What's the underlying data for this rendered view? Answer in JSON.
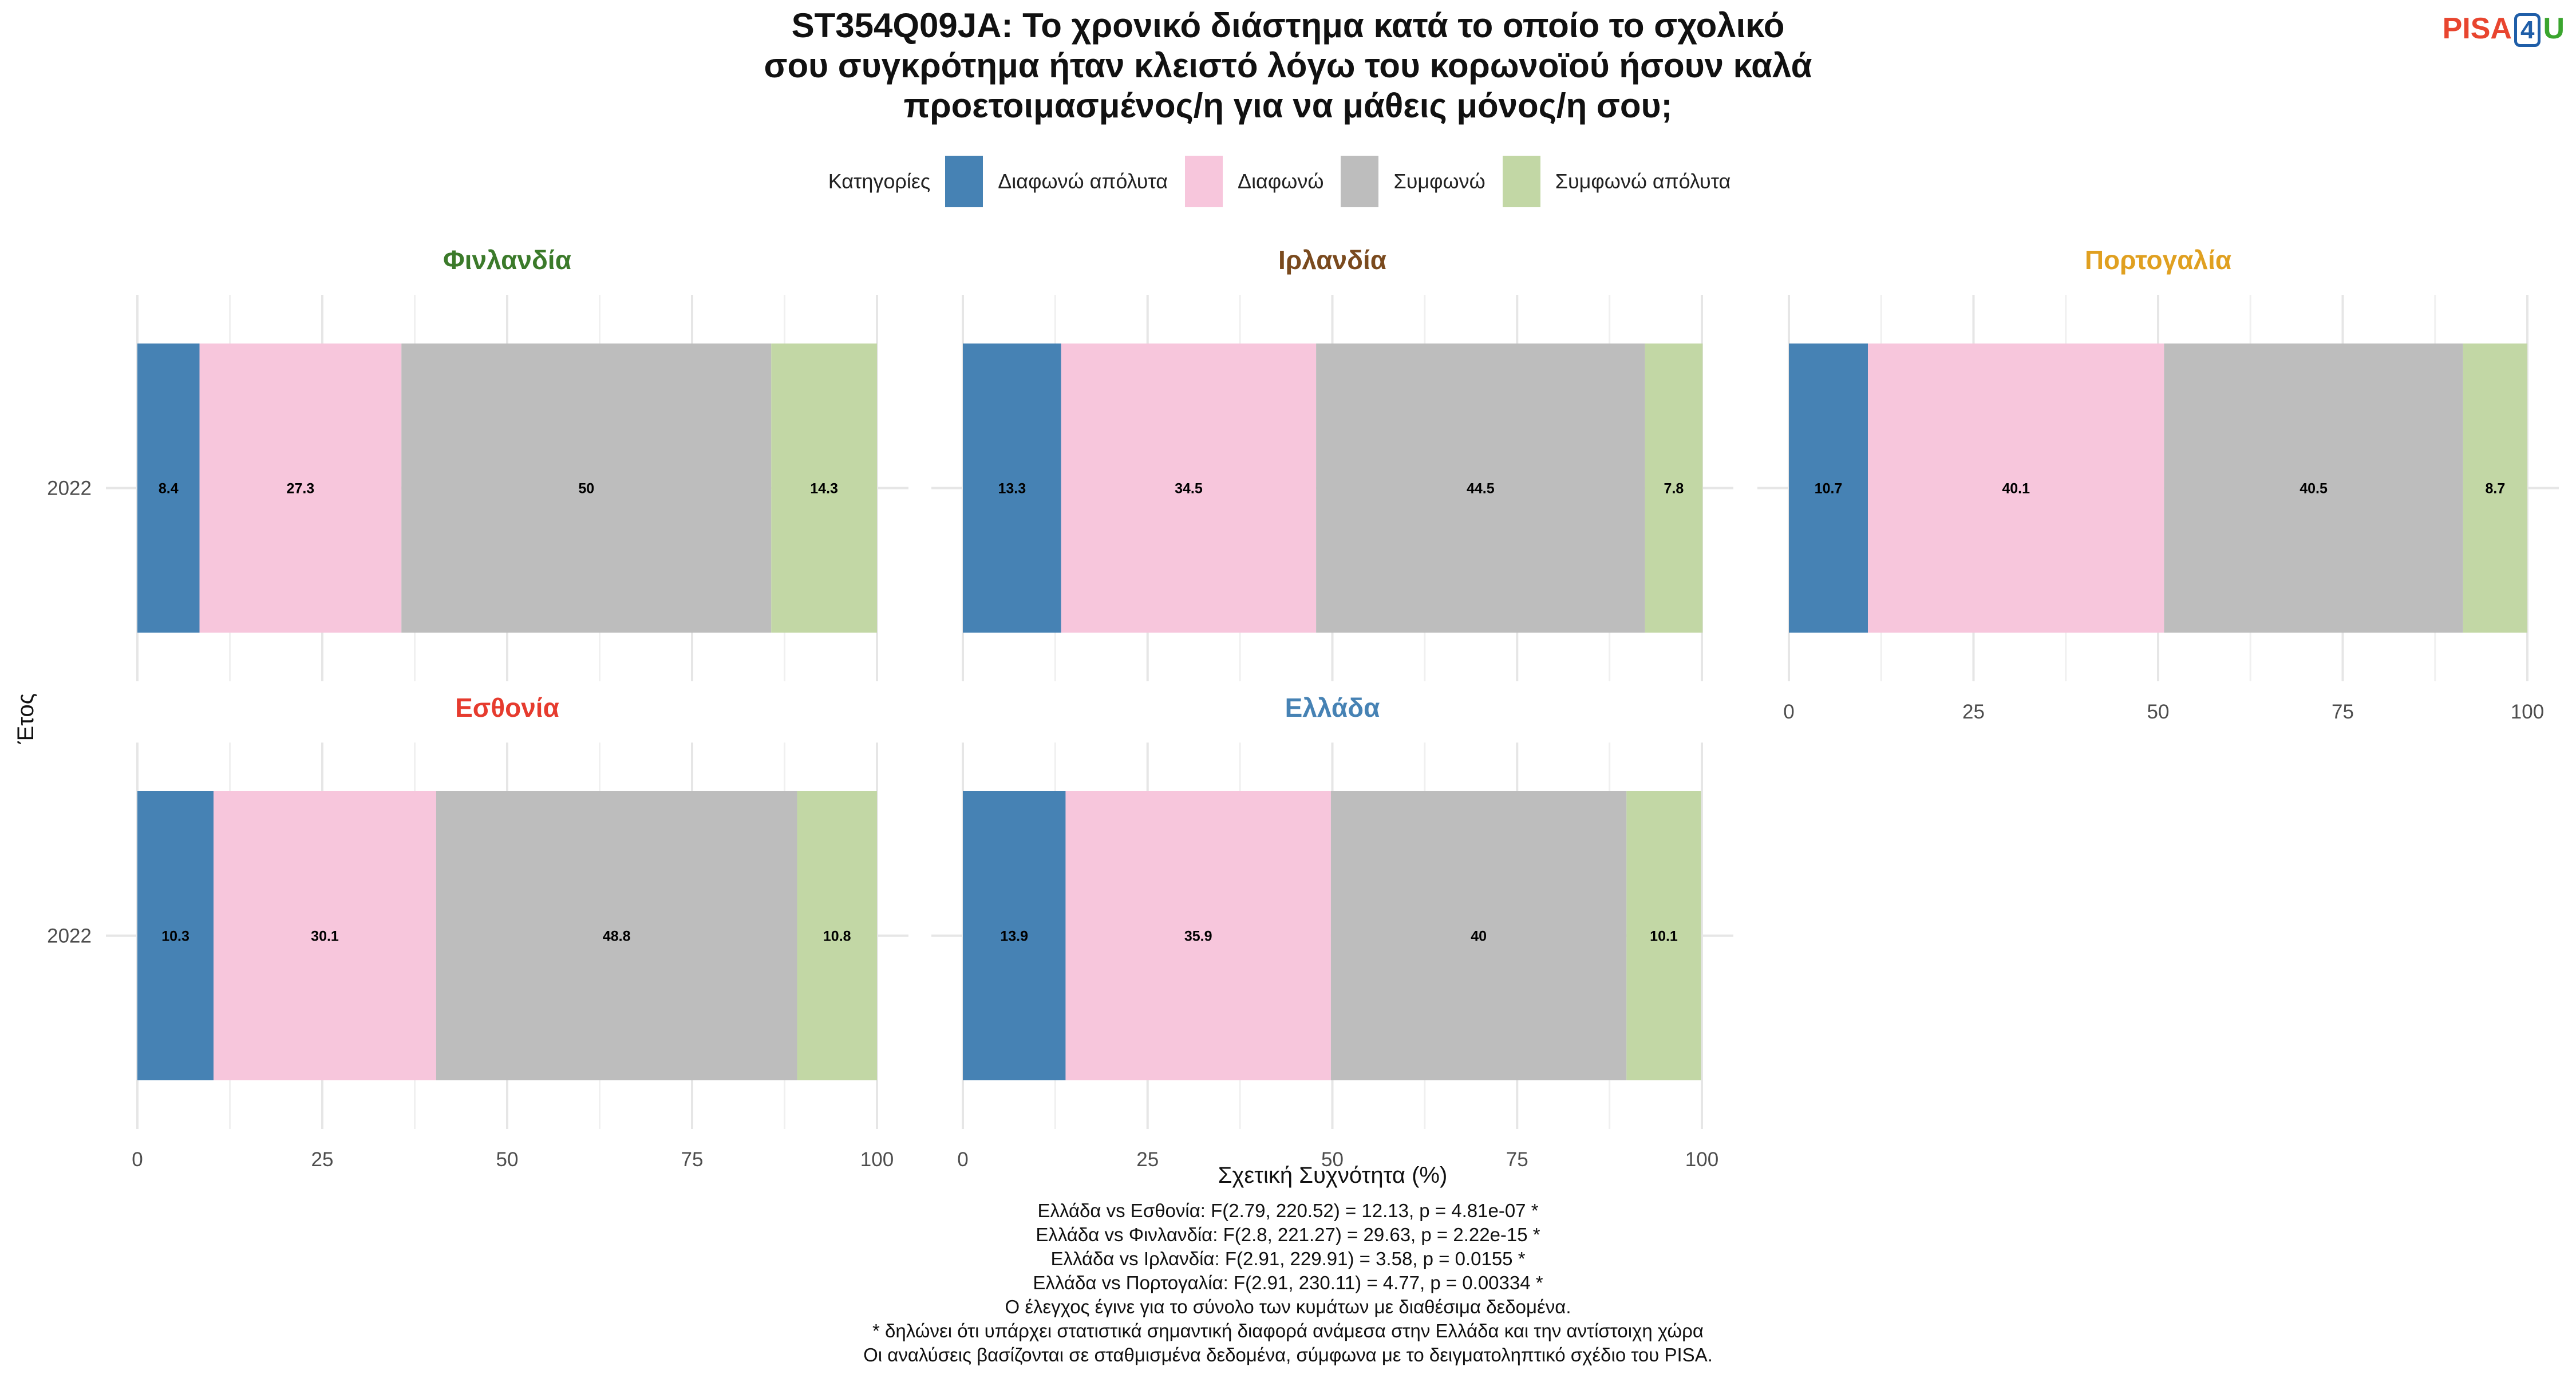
{
  "title_lines": [
    "ST354Q09JA: Το χρονικό διάστημα κατά το οποίο το σχολικό",
    "σου συγκρότημα ήταν κλειστό λόγω του κορωνοϊού ήσουν καλά",
    "προετοιμασμένος/η για να μάθεις μόνος/η σου;"
  ],
  "logo": {
    "pisa": "PISA",
    "four": "4",
    "u": "U"
  },
  "legend": {
    "title": "Κατηγορίες",
    "items": [
      {
        "label": "Διαφωνώ απόλυτα",
        "color": "#4682b4"
      },
      {
        "label": "Διαφωνώ",
        "color": "#f7c6dc"
      },
      {
        "label": "Συμφωνώ",
        "color": "#bdbdbd"
      },
      {
        "label": "Συμφωνώ απόλυτα",
        "color": "#c2d7a5"
      }
    ]
  },
  "notes": [
    "Ελλάδα vs Εσθονία: F(2.79, 220.52) = 12.13, p = 4.81e-07 *",
    "Ελλάδα vs Φινλανδία: F(2.8, 221.27) = 29.63, p = 2.22e-15 *",
    "Ελλάδα vs Ιρλανδία: F(2.91, 229.91) = 3.58, p = 0.0155 *",
    "Ελλάδα vs Πορτογαλία: F(2.91, 230.11) = 4.77, p = 0.00334 *",
    "Ο έλεγχος έγινε για το σύνολο των κυμάτων με διαθέσιμα δεδομένα.",
    "* δηλώνει ότι υπάρχει στατιστικά σημαντική διαφορά ανάμεσα στην Ελλάδα και την αντίστοιχη χώρα",
    "Οι αναλύσεις βασίζονται σε σταθμισμένα δεδομένα, σύμφωνα με το δειγματοληπτικό σχέδιο του PISA."
  ],
  "chart_data": {
    "type": "bar",
    "orientation": "horizontal-stacked",
    "xlabel": "Σχετική Συχνότητα (%)",
    "ylabel": "Έτος",
    "xlim": [
      0,
      100
    ],
    "xticks": [
      0,
      25,
      50,
      75,
      100
    ],
    "categories": [
      "Διαφωνώ απόλυτα",
      "Διαφωνώ",
      "Συμφωνώ",
      "Συμφωνώ απόλυτα"
    ],
    "panels": [
      {
        "name": "Φινλανδία",
        "color": "#3b7a2a",
        "year": "2022",
        "values": [
          8.4,
          27.3,
          50,
          14.3
        ]
      },
      {
        "name": "Ιρλανδία",
        "color": "#7a4a1e",
        "year": "2022",
        "values": [
          13.3,
          34.5,
          44.5,
          7.8
        ]
      },
      {
        "name": "Πορτογαλία",
        "color": "#e0a020",
        "year": "2022",
        "values": [
          10.7,
          40.1,
          40.5,
          8.7
        ]
      },
      {
        "name": "Εσθονία",
        "color": "#e63b2e",
        "year": "2022",
        "values": [
          10.3,
          30.1,
          48.8,
          10.8
        ]
      },
      {
        "name": "Ελλάδα",
        "color": "#4682b4",
        "year": "2022",
        "values": [
          13.9,
          35.9,
          40,
          10.1
        ]
      }
    ]
  }
}
